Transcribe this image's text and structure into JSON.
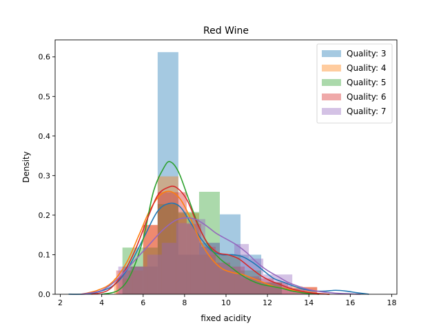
{
  "chart_data": {
    "type": "bar",
    "title": "Red Wine",
    "xlabel": "fixed acidity",
    "ylabel": "Density",
    "xlim": [
      1.75,
      18.25
    ],
    "ylim": [
      0,
      0.643
    ],
    "xticks": [
      "2",
      "4",
      "6",
      "8",
      "10",
      "12",
      "14",
      "16",
      "18"
    ],
    "xtick_values": [
      2,
      4,
      6,
      8,
      10,
      12,
      14,
      16,
      18
    ],
    "yticks": [
      "0.0",
      "0.1",
      "0.2",
      "0.3",
      "0.4",
      "0.5",
      "0.6"
    ],
    "ytick_values": [
      0,
      0.1,
      0.2,
      0.3,
      0.4,
      0.5,
      0.6
    ],
    "grid": false,
    "legend_position": "top-right",
    "series": [
      {
        "name": "Quality: 3",
        "color": "#1f77b4",
        "bars": [
          {
            "x0": 5.0,
            "x1": 6.7,
            "h": 0.07
          },
          {
            "x0": 6.7,
            "x1": 7.7,
            "h": 0.612
          },
          {
            "x0": 7.7,
            "x1": 8.7,
            "h": 0.1
          },
          {
            "x0": 8.7,
            "x1": 9.7,
            "h": 0.13
          },
          {
            "x0": 9.7,
            "x1": 10.7,
            "h": 0.202
          },
          {
            "x0": 10.7,
            "x1": 11.7,
            "h": 0.1
          },
          {
            "x0": 11.7,
            "x1": 12.7,
            "h": 0.03
          }
        ],
        "kde": [
          [
            2.4,
            0.0
          ],
          [
            3.5,
            0.002
          ],
          [
            4.5,
            0.02
          ],
          [
            5.2,
            0.06
          ],
          [
            6.0,
            0.14
          ],
          [
            6.7,
            0.21
          ],
          [
            7.3,
            0.23
          ],
          [
            7.8,
            0.22
          ],
          [
            8.3,
            0.18
          ],
          [
            8.8,
            0.14
          ],
          [
            9.3,
            0.11
          ],
          [
            9.8,
            0.1
          ],
          [
            10.3,
            0.1
          ],
          [
            10.8,
            0.095
          ],
          [
            11.3,
            0.08
          ],
          [
            11.8,
            0.06
          ],
          [
            12.3,
            0.04
          ],
          [
            12.8,
            0.03
          ],
          [
            13.3,
            0.02
          ],
          [
            13.8,
            0.012
          ],
          [
            14.3,
            0.008
          ],
          [
            14.8,
            0.008
          ],
          [
            15.3,
            0.01
          ],
          [
            15.8,
            0.008
          ],
          [
            16.3,
            0.004
          ],
          [
            16.9,
            0.0
          ]
        ]
      },
      {
        "name": "Quality: 4",
        "color": "#ff7f0e",
        "bars": [
          {
            "x0": 4.6,
            "x1": 5.3,
            "h": 0.04
          },
          {
            "x0": 5.3,
            "x1": 6.0,
            "h": 0.06
          },
          {
            "x0": 6.0,
            "x1": 6.7,
            "h": 0.175
          },
          {
            "x0": 6.7,
            "x1": 7.7,
            "h": 0.298
          },
          {
            "x0": 7.7,
            "x1": 8.7,
            "h": 0.205
          },
          {
            "x0": 8.7,
            "x1": 9.7,
            "h": 0.1
          },
          {
            "x0": 9.7,
            "x1": 10.7,
            "h": 0.06
          },
          {
            "x0": 10.7,
            "x1": 11.7,
            "h": 0.04
          },
          {
            "x0": 11.7,
            "x1": 12.7,
            "h": 0.03
          },
          {
            "x0": 12.7,
            "x1": 13.7,
            "h": 0.02
          },
          {
            "x0": 13.7,
            "x1": 14.4,
            "h": 0.018
          }
        ],
        "kde": [
          [
            3.0,
            0.0
          ],
          [
            3.8,
            0.01
          ],
          [
            4.5,
            0.03
          ],
          [
            5.2,
            0.08
          ],
          [
            5.8,
            0.15
          ],
          [
            6.3,
            0.21
          ],
          [
            6.8,
            0.25
          ],
          [
            7.3,
            0.26
          ],
          [
            7.8,
            0.24
          ],
          [
            8.3,
            0.19
          ],
          [
            8.8,
            0.13
          ],
          [
            9.3,
            0.09
          ],
          [
            9.8,
            0.065
          ],
          [
            10.3,
            0.055
          ],
          [
            10.8,
            0.05
          ],
          [
            11.3,
            0.04
          ],
          [
            11.8,
            0.03
          ],
          [
            12.3,
            0.02
          ],
          [
            12.8,
            0.015
          ],
          [
            13.3,
            0.01
          ],
          [
            13.8,
            0.006
          ],
          [
            14.4,
            0.002
          ],
          [
            15.0,
            0.0
          ]
        ]
      },
      {
        "name": "Quality: 5",
        "color": "#2ca02c",
        "bars": [
          {
            "x0": 5.0,
            "x1": 6.0,
            "h": 0.118
          },
          {
            "x0": 6.0,
            "x1": 6.7,
            "h": 0.118
          },
          {
            "x0": 6.7,
            "x1": 7.7,
            "h": 0.228
          },
          {
            "x0": 7.7,
            "x1": 8.7,
            "h": 0.208
          },
          {
            "x0": 8.7,
            "x1": 9.7,
            "h": 0.259
          },
          {
            "x0": 9.7,
            "x1": 10.7,
            "h": 0.1
          },
          {
            "x0": 10.7,
            "x1": 11.7,
            "h": 0.06
          },
          {
            "x0": 11.7,
            "x1": 12.7,
            "h": 0.03
          }
        ],
        "kde": [
          [
            4.0,
            0.0
          ],
          [
            4.8,
            0.01
          ],
          [
            5.4,
            0.05
          ],
          [
            6.0,
            0.14
          ],
          [
            6.5,
            0.26
          ],
          [
            7.0,
            0.32
          ],
          [
            7.3,
            0.335
          ],
          [
            7.7,
            0.31
          ],
          [
            8.2,
            0.24
          ],
          [
            8.7,
            0.17
          ],
          [
            9.2,
            0.12
          ],
          [
            9.7,
            0.09
          ],
          [
            10.2,
            0.07
          ],
          [
            10.7,
            0.05
          ],
          [
            11.2,
            0.035
          ],
          [
            11.7,
            0.025
          ],
          [
            12.2,
            0.02
          ],
          [
            12.7,
            0.015
          ],
          [
            13.2,
            0.008
          ],
          [
            13.8,
            0.003
          ],
          [
            14.5,
            0.0
          ]
        ]
      },
      {
        "name": "Quality: 6",
        "color": "#d62728",
        "bars": [
          {
            "x0": 4.7,
            "x1": 5.4,
            "h": 0.06
          },
          {
            "x0": 5.4,
            "x1": 6.0,
            "h": 0.07
          },
          {
            "x0": 6.0,
            "x1": 6.7,
            "h": 0.175
          },
          {
            "x0": 6.7,
            "x1": 7.4,
            "h": 0.258
          },
          {
            "x0": 7.4,
            "x1": 8.1,
            "h": 0.258
          },
          {
            "x0": 8.1,
            "x1": 8.8,
            "h": 0.178
          },
          {
            "x0": 8.8,
            "x1": 9.5,
            "h": 0.12
          },
          {
            "x0": 9.5,
            "x1": 10.2,
            "h": 0.08
          },
          {
            "x0": 10.2,
            "x1": 10.9,
            "h": 0.07
          },
          {
            "x0": 10.9,
            "x1": 11.6,
            "h": 0.045
          },
          {
            "x0": 11.6,
            "x1": 12.3,
            "h": 0.04
          },
          {
            "x0": 12.3,
            "x1": 13.0,
            "h": 0.03
          },
          {
            "x0": 13.0,
            "x1": 13.7,
            "h": 0.015
          },
          {
            "x0": 13.7,
            "x1": 14.4,
            "h": 0.018
          }
        ],
        "kde": [
          [
            3.5,
            0.0
          ],
          [
            4.3,
            0.01
          ],
          [
            5.0,
            0.05
          ],
          [
            5.6,
            0.11
          ],
          [
            6.2,
            0.19
          ],
          [
            6.7,
            0.25
          ],
          [
            7.2,
            0.27
          ],
          [
            7.6,
            0.27
          ],
          [
            8.1,
            0.24
          ],
          [
            8.6,
            0.18
          ],
          [
            9.1,
            0.13
          ],
          [
            9.6,
            0.105
          ],
          [
            10.1,
            0.1
          ],
          [
            10.6,
            0.09
          ],
          [
            11.1,
            0.07
          ],
          [
            11.6,
            0.05
          ],
          [
            12.1,
            0.035
          ],
          [
            12.6,
            0.025
          ],
          [
            13.1,
            0.015
          ],
          [
            13.6,
            0.008
          ],
          [
            14.2,
            0.003
          ],
          [
            15.0,
            0.0
          ]
        ]
      },
      {
        "name": "Quality: 7",
        "color": "#9467bd",
        "bars": [
          {
            "x0": 4.8,
            "x1": 5.5,
            "h": 0.07
          },
          {
            "x0": 5.5,
            "x1": 6.2,
            "h": 0.07
          },
          {
            "x0": 6.2,
            "x1": 6.9,
            "h": 0.1
          },
          {
            "x0": 6.9,
            "x1": 7.6,
            "h": 0.13
          },
          {
            "x0": 7.6,
            "x1": 8.3,
            "h": 0.18
          },
          {
            "x0": 8.3,
            "x1": 9.0,
            "h": 0.19
          },
          {
            "x0": 9.0,
            "x1": 9.7,
            "h": 0.13
          },
          {
            "x0": 9.7,
            "x1": 10.4,
            "h": 0.1
          },
          {
            "x0": 10.4,
            "x1": 11.1,
            "h": 0.127
          },
          {
            "x0": 11.1,
            "x1": 11.8,
            "h": 0.09
          },
          {
            "x0": 11.8,
            "x1": 12.5,
            "h": 0.05
          },
          {
            "x0": 12.5,
            "x1": 13.2,
            "h": 0.05
          },
          {
            "x0": 13.2,
            "x1": 13.8,
            "h": 0.015
          }
        ],
        "kde": [
          [
            3.0,
            0.0
          ],
          [
            4.0,
            0.01
          ],
          [
            4.8,
            0.04
          ],
          [
            5.5,
            0.08
          ],
          [
            6.2,
            0.12
          ],
          [
            6.9,
            0.16
          ],
          [
            7.5,
            0.185
          ],
          [
            8.0,
            0.193
          ],
          [
            8.5,
            0.19
          ],
          [
            9.0,
            0.175
          ],
          [
            9.5,
            0.155
          ],
          [
            10.0,
            0.14
          ],
          [
            10.5,
            0.125
          ],
          [
            11.0,
            0.105
          ],
          [
            11.5,
            0.08
          ],
          [
            12.0,
            0.06
          ],
          [
            12.5,
            0.045
          ],
          [
            13.0,
            0.03
          ],
          [
            13.5,
            0.02
          ],
          [
            14.0,
            0.012
          ],
          [
            14.5,
            0.007
          ],
          [
            15.0,
            0.004
          ],
          [
            15.5,
            0.002
          ],
          [
            16.5,
            0.0
          ]
        ]
      }
    ]
  }
}
